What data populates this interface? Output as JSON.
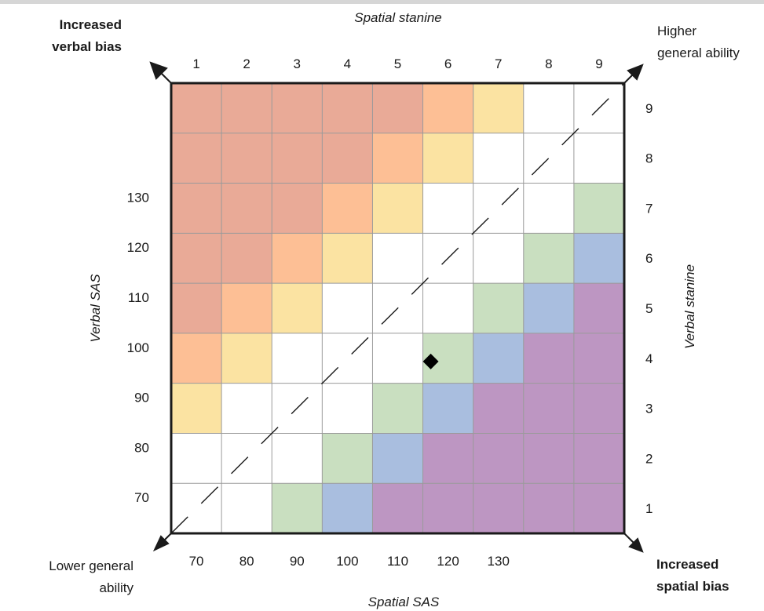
{
  "chart_data": {
    "type": "heatmap",
    "x_stanine_title": "Spatial stanine",
    "x_stanine_ticks": [
      "1",
      "2",
      "3",
      "4",
      "5",
      "6",
      "7",
      "8",
      "9"
    ],
    "x_sas_title": "Spatial SAS",
    "x_sas_ticks": [
      "70",
      "80",
      "90",
      "100",
      "110",
      "120",
      "130"
    ],
    "y_sas_title": "Verbal SAS",
    "y_sas_ticks": [
      "70",
      "80",
      "90",
      "100",
      "110",
      "120",
      "130"
    ],
    "y_stanine_title": "Verbal stanine",
    "y_stanine_ticks": [
      "1",
      "2",
      "3",
      "4",
      "5",
      "6",
      "7",
      "8",
      "9"
    ],
    "corners": {
      "top_left": [
        "Increased",
        "verbal bias"
      ],
      "top_right": [
        "Higher",
        "general ability"
      ],
      "bottom_left": [
        "Lower general",
        "ability"
      ],
      "bottom_right": [
        "Increased",
        "spatial bias"
      ]
    },
    "colors": {
      "0": "#ffffff",
      "1": "#fbe3a2",
      "2": "#fdbf95",
      "3": "#e9aa97",
      "-1": "#c9dfc0",
      "-2": "#a9bedf",
      "-3": "#bd96c2"
    },
    "grid_rows_top_to_bottom": [
      [
        3,
        3,
        3,
        3,
        3,
        2,
        1,
        0,
        0
      ],
      [
        3,
        3,
        3,
        3,
        2,
        1,
        0,
        0,
        0
      ],
      [
        3,
        3,
        3,
        2,
        1,
        0,
        0,
        0,
        -1
      ],
      [
        3,
        3,
        2,
        1,
        0,
        0,
        0,
        -1,
        -2
      ],
      [
        3,
        2,
        1,
        0,
        0,
        0,
        -1,
        -2,
        -3
      ],
      [
        2,
        1,
        0,
        0,
        0,
        -1,
        -2,
        -3,
        -3
      ],
      [
        1,
        0,
        0,
        0,
        -1,
        -2,
        -3,
        -3,
        -3
      ],
      [
        0,
        0,
        0,
        -1,
        -2,
        -3,
        -3,
        -3,
        -3
      ],
      [
        0,
        0,
        -1,
        -2,
        -3,
        -3,
        -3,
        -3,
        -3
      ]
    ],
    "marker": {
      "spatial_stanine": 6,
      "verbal_stanine": 4
    },
    "diagonal": "dashed"
  }
}
